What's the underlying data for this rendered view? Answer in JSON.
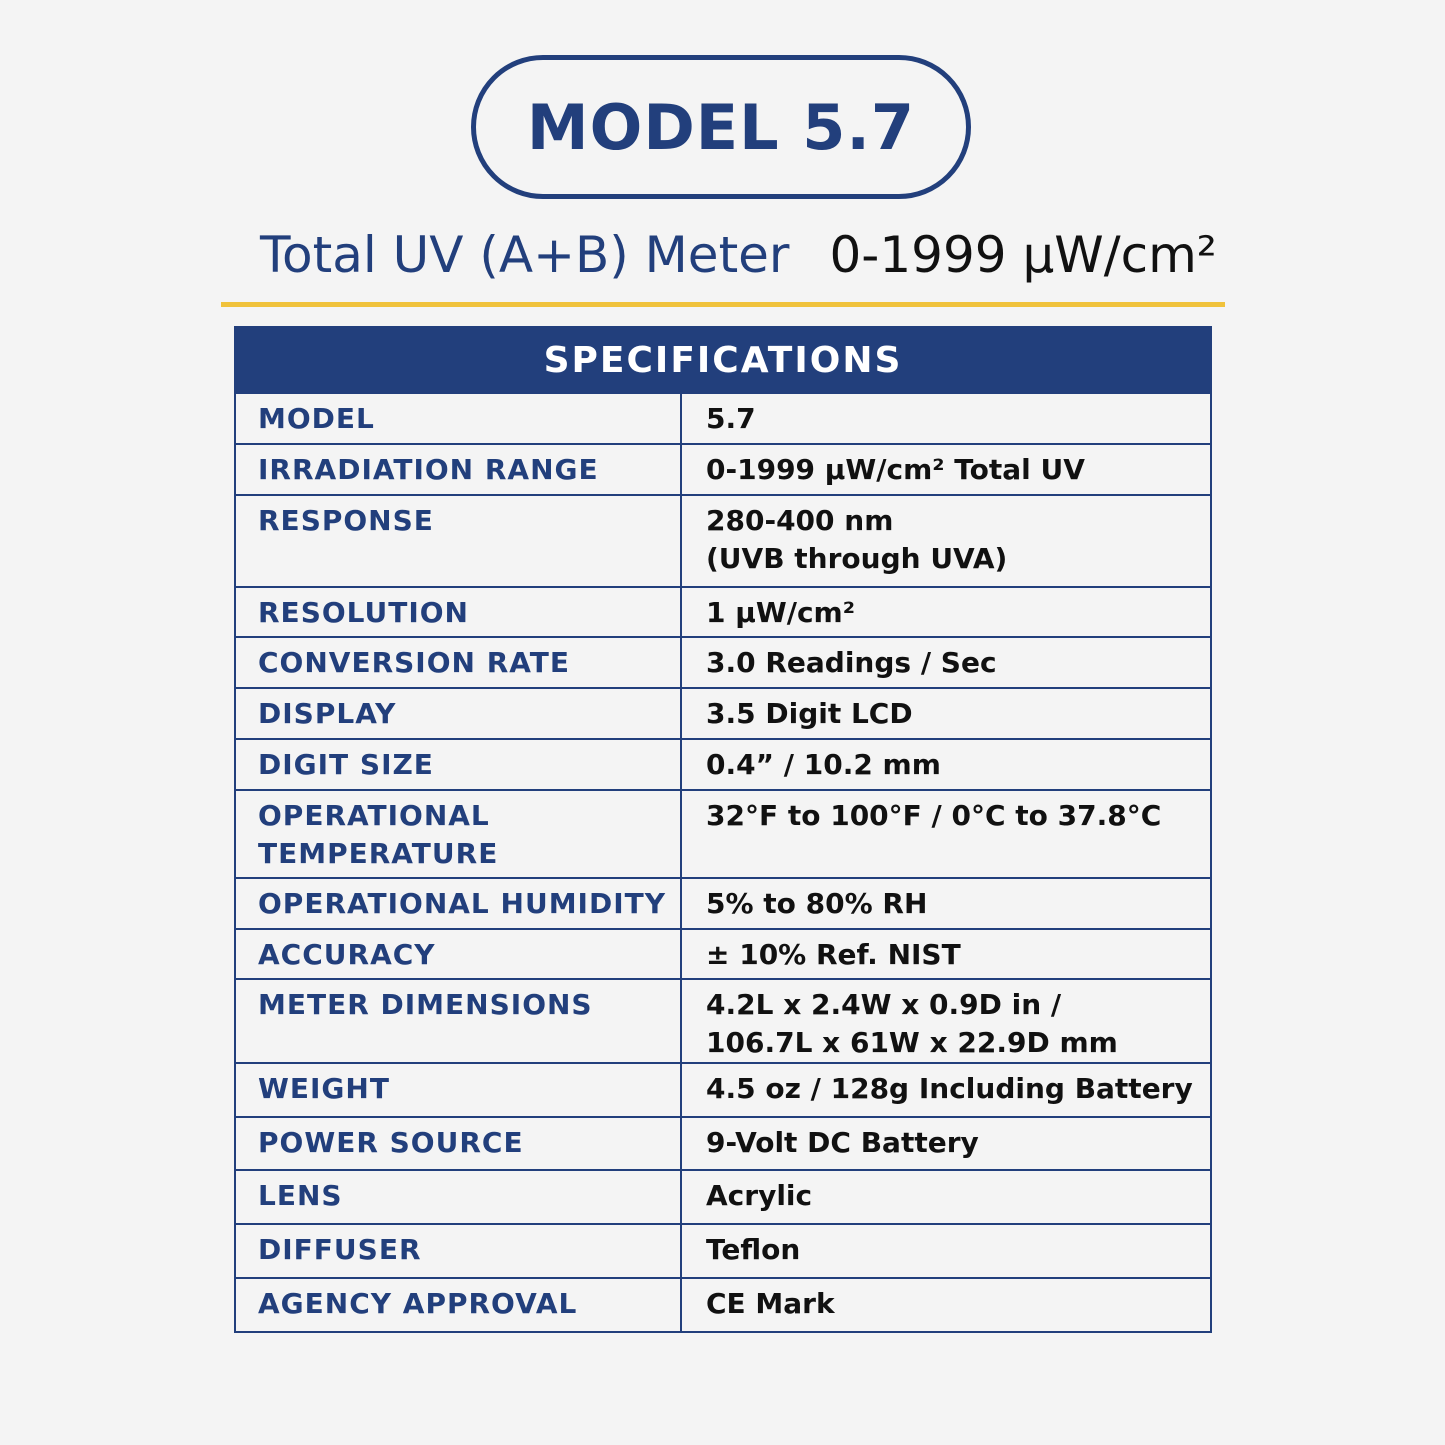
{
  "header": {
    "model_badge": "MODEL 5.7",
    "product": "Total UV (A+B) Meter",
    "range": "0-1999 µW/cm²"
  },
  "colors": {
    "navy": "#223f7c",
    "gold": "#f0c23b",
    "background": "#f4f4f4"
  },
  "specs": {
    "title": "SPECIFICATIONS",
    "rows": [
      {
        "label": "MODEL",
        "value": "5.7"
      },
      {
        "label": "IRRADIATION RANGE",
        "value": "0-1999 µW/cm² Total UV"
      },
      {
        "label": "RESPONSE",
        "value": "280-400 nm\n(UVB through UVA)"
      },
      {
        "label": "RESOLUTION",
        "value": "1 µW/cm²"
      },
      {
        "label": "CONVERSION RATE",
        "value": "3.0 Readings / Sec"
      },
      {
        "label": "DISPLAY",
        "value": "3.5 Digit LCD"
      },
      {
        "label": "DIGIT SIZE",
        "value": "0.4” / 10.2 mm"
      },
      {
        "label": "OPERATIONAL\nTEMPERATURE",
        "value": "32°F to 100°F / 0°C to 37.8°C"
      },
      {
        "label": "OPERATIONAL HUMIDITY",
        "value": "5% to 80% RH"
      },
      {
        "label": "ACCURACY",
        "value": "± 10% Ref. NIST"
      },
      {
        "label": "METER DIMENSIONS",
        "value": "4.2L x 2.4W x 0.9D in /\n106.7L x 61W x 22.9D mm"
      },
      {
        "label": "WEIGHT",
        "value": "4.5 oz / 128g Including Battery"
      },
      {
        "label": "POWER SOURCE",
        "value": "9-Volt DC Battery"
      },
      {
        "label": "LENS",
        "value": "Acrylic"
      },
      {
        "label": "DIFFUSER",
        "value": "Teflon"
      },
      {
        "label": "AGENCY APPROVAL",
        "value": "CE Mark"
      }
    ]
  }
}
